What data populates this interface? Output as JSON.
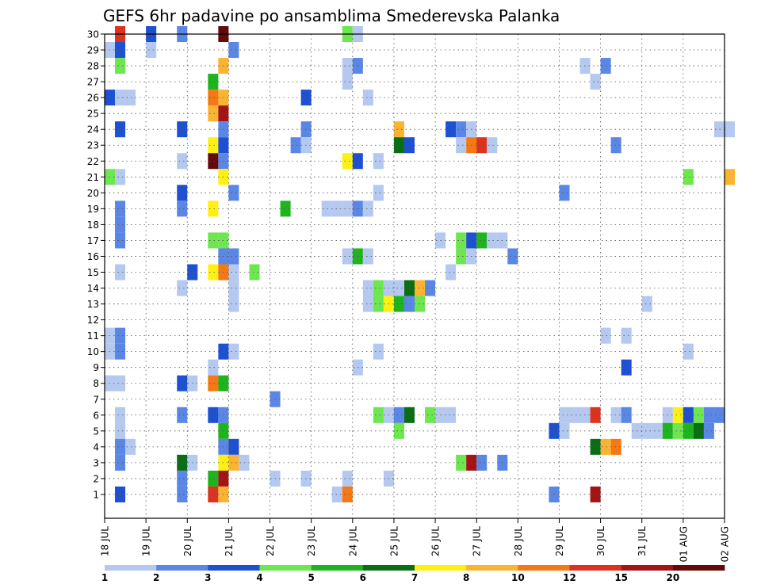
{
  "chart_data": {
    "type": "heatmap",
    "title": "GEFS 6hr padavine po ansamblima Smederevska Palanka",
    "y_ticks": [
      "1",
      "2",
      "3",
      "4",
      "5",
      "6",
      "7",
      "8",
      "9",
      "10",
      "11",
      "12",
      "13",
      "14",
      "15",
      "16",
      "17",
      "18",
      "19",
      "20",
      "21",
      "22",
      "23",
      "24",
      "25",
      "26",
      "27",
      "28",
      "29",
      "30"
    ],
    "x_ticks": [
      "18 JUL",
      "19 JUL",
      "20 JUL",
      "21 JUL",
      "22 JUL",
      "23 JUL",
      "24 JUL",
      "25 JUL",
      "26 JUL",
      "27 JUL",
      "28 JUL",
      "29 JUL",
      "30 JUL",
      "31 JUL",
      "01 AUG",
      "02 AUG"
    ],
    "colorbar_labels": [
      "1",
      "2",
      "3",
      "4",
      "5",
      "6",
      "7",
      "8",
      "10",
      "12",
      "15",
      "20"
    ],
    "colors": [
      "#b4c8f0",
      "#5a87e6",
      "#1e50d2",
      "#6ee650",
      "#1eb41e",
      "#0a6e14",
      "#fff014",
      "#fab432",
      "#f57814",
      "#dc321e",
      "#a51414",
      "#640a0a"
    ],
    "grid": true,
    "cells": [
      {
        "x": "18 JUL 06",
        "y": 30,
        "level": 10
      },
      {
        "x": "19 JUL 00",
        "y": 30,
        "level": 3
      },
      {
        "x": "19 JUL 18",
        "y": 30,
        "level": 2
      },
      {
        "x": "20 JUL 18",
        "y": 30,
        "level": 12
      },
      {
        "x": "23 JUL 18",
        "y": 30,
        "level": 4
      },
      {
        "x": "24 JUL 00",
        "y": 30,
        "level": 1
      },
      {
        "x": "18 JUL 00",
        "y": 29,
        "level": 1
      },
      {
        "x": "18 JUL 06",
        "y": 29,
        "level": 3
      },
      {
        "x": "19 JUL 00",
        "y": 29,
        "level": 1
      },
      {
        "x": "21 JUL 00",
        "y": 29,
        "level": 2
      },
      {
        "x": "18 JUL 06",
        "y": 28,
        "level": 4
      },
      {
        "x": "20 JUL 18",
        "y": 28,
        "level": 8
      },
      {
        "x": "23 JUL 18",
        "y": 28,
        "level": 1
      },
      {
        "x": "24 JUL 00",
        "y": 28,
        "level": 2
      },
      {
        "x": "29 JUL 12",
        "y": 28,
        "level": 1
      },
      {
        "x": "30 JUL 00",
        "y": 28,
        "level": 2
      },
      {
        "x": "20 JUL 12",
        "y": 27,
        "level": 5
      },
      {
        "x": "23 JUL 18",
        "y": 27,
        "level": 1
      },
      {
        "x": "29 JUL 18",
        "y": 27,
        "level": 1
      },
      {
        "x": "18 JUL 00",
        "y": 26,
        "level": 3
      },
      {
        "x": "18 JUL 06",
        "y": 26,
        "level": 1
      },
      {
        "x": "18 JUL 12",
        "y": 26,
        "level": 1
      },
      {
        "x": "20 JUL 12",
        "y": 26,
        "level": 9
      },
      {
        "x": "20 JUL 18",
        "y": 26,
        "level": 8
      },
      {
        "x": "22 JUL 18",
        "y": 26,
        "level": 3
      },
      {
        "x": "24 JUL 06",
        "y": 26,
        "level": 1
      },
      {
        "x": "20 JUL 12",
        "y": 25,
        "level": 8
      },
      {
        "x": "20 JUL 18",
        "y": 25,
        "level": 11
      },
      {
        "x": "18 JUL 06",
        "y": 24,
        "level": 3
      },
      {
        "x": "19 JUL 18",
        "y": 24,
        "level": 3
      },
      {
        "x": "20 JUL 18",
        "y": 24,
        "level": 2
      },
      {
        "x": "22 JUL 18",
        "y": 24,
        "level": 2
      },
      {
        "x": "25 JUL 00",
        "y": 24,
        "level": 8
      },
      {
        "x": "26 JUL 06",
        "y": 24,
        "level": 3
      },
      {
        "x": "26 JUL 12",
        "y": 24,
        "level": 2
      },
      {
        "x": "26 JUL 18",
        "y": 24,
        "level": 1
      },
      {
        "x": "02 AUG 00",
        "y": 24,
        "level": 1
      },
      {
        "x": "01 AUG 18",
        "y": 24,
        "level": 1
      },
      {
        "x": "20 JUL 12",
        "y": 23,
        "level": 7
      },
      {
        "x": "20 JUL 18",
        "y": 23,
        "level": 3
      },
      {
        "x": "22 JUL 12",
        "y": 23,
        "level": 2
      },
      {
        "x": "22 JUL 18",
        "y": 23,
        "level": 1
      },
      {
        "x": "25 JUL 00",
        "y": 23,
        "level": 6
      },
      {
        "x": "25 JUL 06",
        "y": 23,
        "level": 3
      },
      {
        "x": "26 JUL 12",
        "y": 23,
        "level": 1
      },
      {
        "x": "26 JUL 18",
        "y": 23,
        "level": 9
      },
      {
        "x": "27 JUL 00",
        "y": 23,
        "level": 10
      },
      {
        "x": "27 JUL 06",
        "y": 23,
        "level": 1
      },
      {
        "x": "30 JUL 06",
        "y": 23,
        "level": 2
      },
      {
        "x": "19 JUL 18",
        "y": 22,
        "level": 1
      },
      {
        "x": "20 JUL 12",
        "y": 22,
        "level": 12
      },
      {
        "x": "20 JUL 18",
        "y": 22,
        "level": 2
      },
      {
        "x": "23 JUL 18",
        "y": 22,
        "level": 7
      },
      {
        "x": "24 JUL 00",
        "y": 22,
        "level": 3
      },
      {
        "x": "24 JUL 12",
        "y": 22,
        "level": 1
      },
      {
        "x": "18 JUL 00",
        "y": 21,
        "level": 4
      },
      {
        "x": "18 JUL 06",
        "y": 21,
        "level": 1
      },
      {
        "x": "20 JUL 18",
        "y": 21,
        "level": 7
      },
      {
        "x": "01 AUG 00",
        "y": 21,
        "level": 4
      },
      {
        "x": "02 AUG 00",
        "y": 21,
        "level": 8
      },
      {
        "x": "19 JUL 18",
        "y": 20,
        "level": 3
      },
      {
        "x": "21 JUL 00",
        "y": 20,
        "level": 2
      },
      {
        "x": "24 JUL 12",
        "y": 20,
        "level": 1
      },
      {
        "x": "29 JUL 00",
        "y": 20,
        "level": 2
      },
      {
        "x": "18 JUL 06",
        "y": 19,
        "level": 2
      },
      {
        "x": "19 JUL 18",
        "y": 19,
        "level": 2
      },
      {
        "x": "20 JUL 12",
        "y": 19,
        "level": 7
      },
      {
        "x": "22 JUL 06",
        "y": 19,
        "level": 5
      },
      {
        "x": "23 JUL 06",
        "y": 19,
        "level": 1
      },
      {
        "x": "23 JUL 12",
        "y": 19,
        "level": 1
      },
      {
        "x": "23 JUL 18",
        "y": 19,
        "level": 1
      },
      {
        "x": "24 JUL 00",
        "y": 19,
        "level": 2
      },
      {
        "x": "24 JUL 06",
        "y": 19,
        "level": 1
      },
      {
        "x": "18 JUL 06",
        "y": 18,
        "level": 2
      },
      {
        "x": "18 JUL 06",
        "y": 17,
        "level": 2
      },
      {
        "x": "20 JUL 12",
        "y": 17,
        "level": 4
      },
      {
        "x": "20 JUL 18",
        "y": 17,
        "level": 4
      },
      {
        "x": "26 JUL 12",
        "y": 17,
        "level": 4
      },
      {
        "x": "26 JUL 18",
        "y": 17,
        "level": 3
      },
      {
        "x": "27 JUL 00",
        "y": 17,
        "level": 5
      },
      {
        "x": "27 JUL 06",
        "y": 17,
        "level": 1
      },
      {
        "x": "27 JUL 12",
        "y": 17,
        "level": 1
      },
      {
        "x": "26 JUL 00",
        "y": 17,
        "level": 1
      },
      {
        "x": "20 JUL 18",
        "y": 16,
        "level": 2
      },
      {
        "x": "21 JUL 00",
        "y": 16,
        "level": 2
      },
      {
        "x": "23 JUL 18",
        "y": 16,
        "level": 1
      },
      {
        "x": "24 JUL 00",
        "y": 16,
        "level": 5
      },
      {
        "x": "24 JUL 06",
        "y": 16,
        "level": 1
      },
      {
        "x": "26 JUL 12",
        "y": 16,
        "level": 4
      },
      {
        "x": "26 JUL 18",
        "y": 16,
        "level": 1
      },
      {
        "x": "27 JUL 18",
        "y": 16,
        "level": 2
      },
      {
        "x": "18 JUL 06",
        "y": 15,
        "level": 1
      },
      {
        "x": "20 JUL 00",
        "y": 15,
        "level": 3
      },
      {
        "x": "20 JUL 12",
        "y": 15,
        "level": 7
      },
      {
        "x": "20 JUL 18",
        "y": 15,
        "level": 9
      },
      {
        "x": "21 JUL 00",
        "y": 15,
        "level": 1
      },
      {
        "x": "21 JUL 12",
        "y": 15,
        "level": 4
      },
      {
        "x": "26 JUL 06",
        "y": 15,
        "level": 1
      },
      {
        "x": "19 JUL 18",
        "y": 14,
        "level": 1
      },
      {
        "x": "21 JUL 00",
        "y": 14,
        "level": 1
      },
      {
        "x": "24 JUL 06",
        "y": 14,
        "level": 1
      },
      {
        "x": "24 JUL 12",
        "y": 14,
        "level": 4
      },
      {
        "x": "24 JUL 18",
        "y": 14,
        "level": 1
      },
      {
        "x": "25 JUL 00",
        "y": 14,
        "level": 1
      },
      {
        "x": "25 JUL 06",
        "y": 14,
        "level": 6
      },
      {
        "x": "25 JUL 12",
        "y": 14,
        "level": 8
      },
      {
        "x": "25 JUL 18",
        "y": 14,
        "level": 2
      },
      {
        "x": "21 JUL 00",
        "y": 13,
        "level": 1
      },
      {
        "x": "24 JUL 06",
        "y": 13,
        "level": 1
      },
      {
        "x": "24 JUL 12",
        "y": 13,
        "level": 4
      },
      {
        "x": "24 JUL 18",
        "y": 13,
        "level": 7
      },
      {
        "x": "25 JUL 00",
        "y": 13,
        "level": 5
      },
      {
        "x": "25 JUL 06",
        "y": 13,
        "level": 2
      },
      {
        "x": "25 JUL 12",
        "y": 13,
        "level": 4
      },
      {
        "x": "31 JUL 00",
        "y": 13,
        "level": 1
      },
      {
        "x": "18 JUL 00",
        "y": 11,
        "level": 1
      },
      {
        "x": "18 JUL 06",
        "y": 11,
        "level": 2
      },
      {
        "x": "30 JUL 00",
        "y": 11,
        "level": 1
      },
      {
        "x": "30 JUL 12",
        "y": 11,
        "level": 1
      },
      {
        "x": "18 JUL 00",
        "y": 10,
        "level": 1
      },
      {
        "x": "18 JUL 06",
        "y": 10,
        "level": 2
      },
      {
        "x": "20 JUL 18",
        "y": 10,
        "level": 3
      },
      {
        "x": "21 JUL 00",
        "y": 10,
        "level": 1
      },
      {
        "x": "24 JUL 12",
        "y": 10,
        "level": 1
      },
      {
        "x": "01 AUG 00",
        "y": 10,
        "level": 1
      },
      {
        "x": "20 JUL 12",
        "y": 9,
        "level": 1
      },
      {
        "x": "24 JUL 00",
        "y": 9,
        "level": 1
      },
      {
        "x": "30 JUL 12",
        "y": 9,
        "level": 3
      },
      {
        "x": "18 JUL 00",
        "y": 8,
        "level": 1
      },
      {
        "x": "18 JUL 06",
        "y": 8,
        "level": 1
      },
      {
        "x": "19 JUL 18",
        "y": 8,
        "level": 3
      },
      {
        "x": "20 JUL 00",
        "y": 8,
        "level": 1
      },
      {
        "x": "20 JUL 12",
        "y": 8,
        "level": 9
      },
      {
        "x": "20 JUL 18",
        "y": 8,
        "level": 5
      },
      {
        "x": "22 JUL 00",
        "y": 7,
        "level": 2
      },
      {
        "x": "18 JUL 06",
        "y": 6,
        "level": 1
      },
      {
        "x": "19 JUL 18",
        "y": 6,
        "level": 2
      },
      {
        "x": "20 JUL 12",
        "y": 6,
        "level": 3
      },
      {
        "x": "20 JUL 18",
        "y": 6,
        "level": 2
      },
      {
        "x": "24 JUL 12",
        "y": 6,
        "level": 4
      },
      {
        "x": "24 JUL 18",
        "y": 6,
        "level": 1
      },
      {
        "x": "25 JUL 00",
        "y": 6,
        "level": 2
      },
      {
        "x": "25 JUL 06",
        "y": 6,
        "level": 6
      },
      {
        "x": "25 JUL 18",
        "y": 6,
        "level": 4
      },
      {
        "x": "26 JUL 00",
        "y": 6,
        "level": 1
      },
      {
        "x": "26 JUL 06",
        "y": 6,
        "level": 1
      },
      {
        "x": "29 JUL 00",
        "y": 6,
        "level": 1
      },
      {
        "x": "29 JUL 06",
        "y": 6,
        "level": 1
      },
      {
        "x": "29 JUL 12",
        "y": 6,
        "level": 1
      },
      {
        "x": "29 JUL 18",
        "y": 6,
        "level": 10
      },
      {
        "x": "30 JUL 06",
        "y": 6,
        "level": 1
      },
      {
        "x": "30 JUL 12",
        "y": 6,
        "level": 2
      },
      {
        "x": "31 JUL 12",
        "y": 6,
        "level": 1
      },
      {
        "x": "31 JUL 18",
        "y": 6,
        "level": 7
      },
      {
        "x": "01 AUG 00",
        "y": 6,
        "level": 3
      },
      {
        "x": "01 AUG 06",
        "y": 6,
        "level": 4
      },
      {
        "x": "01 AUG 12",
        "y": 6,
        "level": 2
      },
      {
        "x": "01 AUG 18",
        "y": 6,
        "level": 2
      },
      {
        "x": "18 JUL 06",
        "y": 5,
        "level": 1
      },
      {
        "x": "20 JUL 18",
        "y": 5,
        "level": 5
      },
      {
        "x": "25 JUL 00",
        "y": 5,
        "level": 4
      },
      {
        "x": "28 JUL 18",
        "y": 5,
        "level": 3
      },
      {
        "x": "29 JUL 00",
        "y": 5,
        "level": 1
      },
      {
        "x": "30 JUL 18",
        "y": 5,
        "level": 1
      },
      {
        "x": "31 JUL 00",
        "y": 5,
        "level": 1
      },
      {
        "x": "31 JUL 06",
        "y": 5,
        "level": 1
      },
      {
        "x": "31 JUL 12",
        "y": 5,
        "level": 5
      },
      {
        "x": "31 JUL 18",
        "y": 5,
        "level": 4
      },
      {
        "x": "01 AUG 00",
        "y": 5,
        "level": 5
      },
      {
        "x": "01 AUG 06",
        "y": 5,
        "level": 6
      },
      {
        "x": "01 AUG 12",
        "y": 5,
        "level": 2
      },
      {
        "x": "18 JUL 06",
        "y": 4,
        "level": 2
      },
      {
        "x": "18 JUL 12",
        "y": 4,
        "level": 1
      },
      {
        "x": "20 JUL 18",
        "y": 4,
        "level": 2
      },
      {
        "x": "21 JUL 00",
        "y": 4,
        "level": 3
      },
      {
        "x": "29 JUL 18",
        "y": 4,
        "level": 6
      },
      {
        "x": "30 JUL 00",
        "y": 4,
        "level": 8
      },
      {
        "x": "30 JUL 06",
        "y": 4,
        "level": 9
      },
      {
        "x": "18 JUL 06",
        "y": 3,
        "level": 2
      },
      {
        "x": "19 JUL 18",
        "y": 3,
        "level": 6
      },
      {
        "x": "20 JUL 00",
        "y": 3,
        "level": 1
      },
      {
        "x": "20 JUL 18",
        "y": 3,
        "level": 7
      },
      {
        "x": "21 JUL 00",
        "y": 3,
        "level": 8
      },
      {
        "x": "21 JUL 06",
        "y": 3,
        "level": 1
      },
      {
        "x": "26 JUL 12",
        "y": 3,
        "level": 4
      },
      {
        "x": "26 JUL 18",
        "y": 3,
        "level": 11
      },
      {
        "x": "27 JUL 00",
        "y": 3,
        "level": 2
      },
      {
        "x": "27 JUL 12",
        "y": 3,
        "level": 2
      },
      {
        "x": "19 JUL 18",
        "y": 2,
        "level": 2
      },
      {
        "x": "20 JUL 12",
        "y": 2,
        "level": 5
      },
      {
        "x": "20 JUL 18",
        "y": 2,
        "level": 11
      },
      {
        "x": "22 JUL 00",
        "y": 2,
        "level": 1
      },
      {
        "x": "22 JUL 18",
        "y": 2,
        "level": 1
      },
      {
        "x": "23 JUL 18",
        "y": 2,
        "level": 1
      },
      {
        "x": "24 JUL 18",
        "y": 2,
        "level": 1
      },
      {
        "x": "18 JUL 06",
        "y": 1,
        "level": 3
      },
      {
        "x": "19 JUL 18",
        "y": 1,
        "level": 2
      },
      {
        "x": "20 JUL 12",
        "y": 1,
        "level": 10
      },
      {
        "x": "20 JUL 18",
        "y": 1,
        "level": 8
      },
      {
        "x": "23 JUL 12",
        "y": 1,
        "level": 1
      },
      {
        "x": "23 JUL 18",
        "y": 1,
        "level": 9
      },
      {
        "x": "28 JUL 18",
        "y": 1,
        "level": 2
      },
      {
        "x": "29 JUL 18",
        "y": 1,
        "level": 11
      }
    ]
  }
}
